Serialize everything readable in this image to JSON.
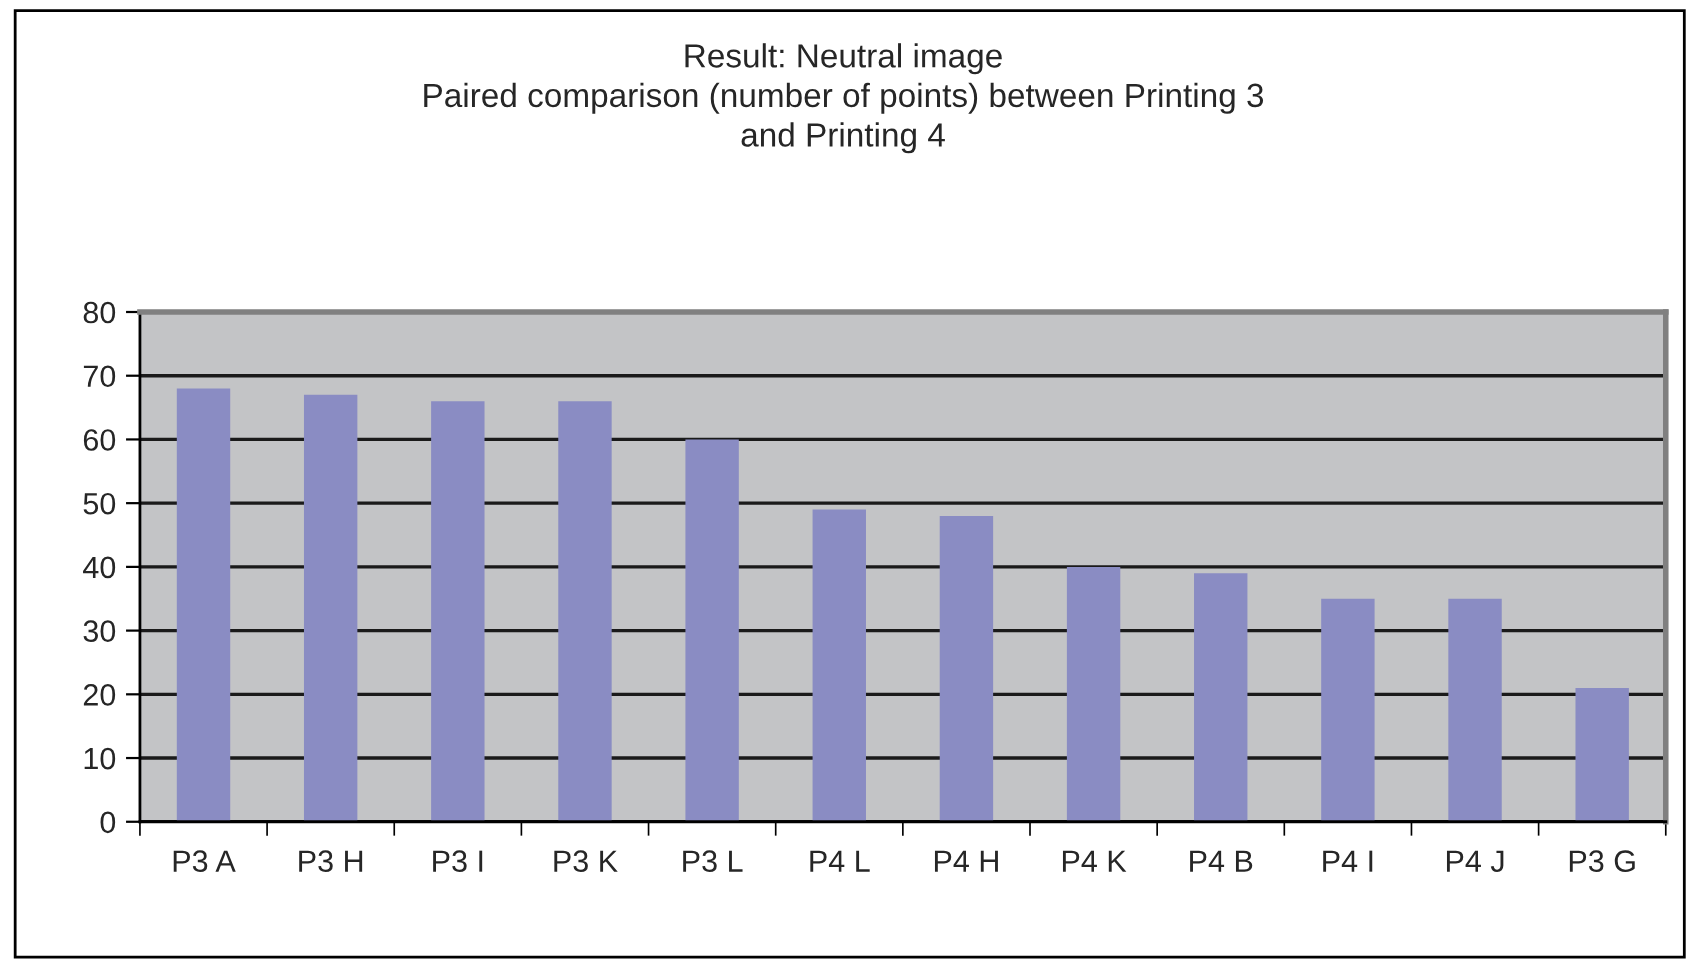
{
  "chart_data": {
    "type": "bar",
    "title": "Result: Neutral image\nPaired comparison (number of points) between Printing 3\nand Printing 4",
    "categories": [
      "P3 A",
      "P3 H",
      "P3 I",
      "P3 K",
      "P3 L",
      "P4 L",
      "P4 H",
      "P4 K",
      "P4 B",
      "P4 I",
      "P4 J",
      "P3 G"
    ],
    "values": [
      68,
      67,
      66,
      66,
      60,
      49,
      48,
      40,
      39,
      35,
      35,
      21
    ],
    "color": "#8a8cc3",
    "ylim": [
      0,
      80
    ],
    "yticks": [
      0,
      10,
      20,
      30,
      40,
      50,
      60,
      70,
      80
    ],
    "grid": "y"
  }
}
